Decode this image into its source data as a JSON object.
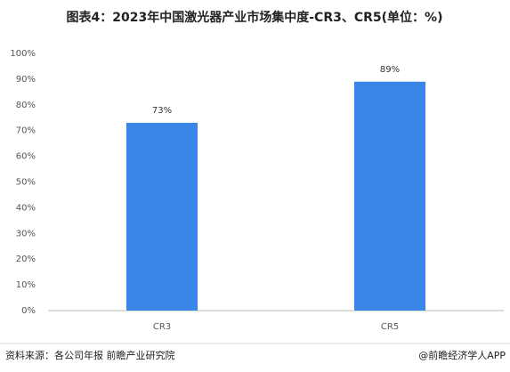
{
  "chart_data": {
    "type": "bar",
    "title": "图表4：2023年中国激光器产业市场集中度-CR3、CR5(单位：%)",
    "categories": [
      "CR3",
      "CR5"
    ],
    "values": [
      73,
      89
    ],
    "value_labels": [
      "73%",
      "89%"
    ],
    "color": "#3a86e8",
    "ylim": [
      0,
      100
    ],
    "yticks": [
      {
        "value": 0,
        "label": "0%"
      },
      {
        "value": 10,
        "label": "10%"
      },
      {
        "value": 20,
        "label": "20%"
      },
      {
        "value": 30,
        "label": "30%"
      },
      {
        "value": 40,
        "label": "40%"
      },
      {
        "value": 50,
        "label": "50%"
      },
      {
        "value": 60,
        "label": "60%"
      },
      {
        "value": 70,
        "label": "70%"
      },
      {
        "value": 80,
        "label": "80%"
      },
      {
        "value": 90,
        "label": "90%"
      },
      {
        "value": 100,
        "label": "100%"
      }
    ],
    "grid": false,
    "source": "资料来源：各公司年报 前瞻产业研究院",
    "footer": "@前瞻经济学人APP"
  }
}
